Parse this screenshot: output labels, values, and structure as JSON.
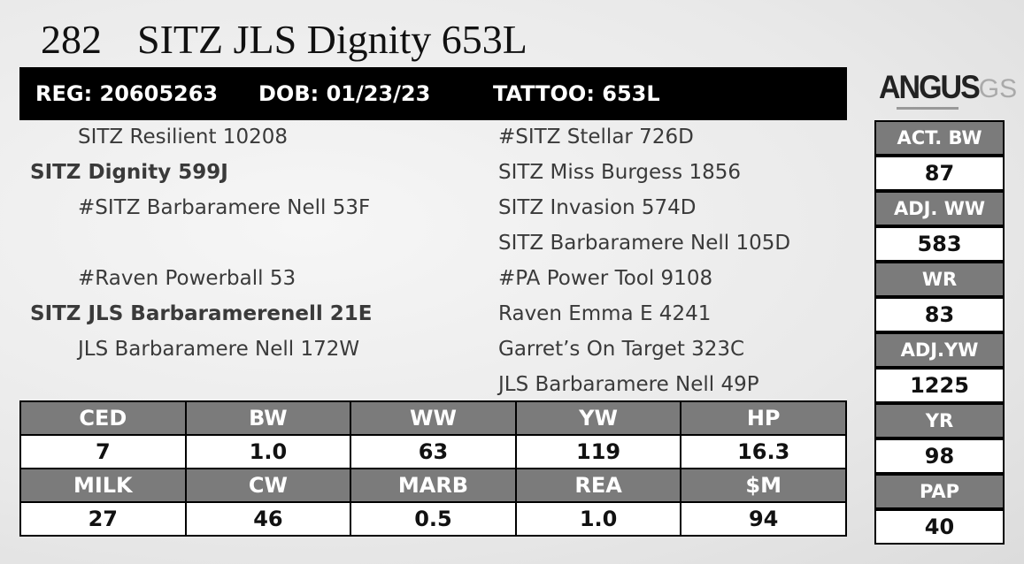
{
  "header": {
    "lot": "282",
    "name": "SITZ JLS Dignity 653L"
  },
  "id_bar": {
    "reg": "REG: 20605263",
    "dob": "DOB: 01/23/23",
    "tattoo": "TATTOO: 653L"
  },
  "logo": {
    "brand": "ANGUS",
    "suffix": "GS"
  },
  "pedigree": {
    "sire": {
      "sire": "SITZ Resilient 10208",
      "name": "SITZ Dignity 599J",
      "dam": "#SITZ Barbaramere Nell 53F"
    },
    "dam": {
      "sire": "#Raven Powerball 53",
      "name": "SITZ JLS Barbaramerenell 21E",
      "dam": "JLS Barbaramere Nell 172W"
    },
    "great_grandparents": [
      "#SITZ Stellar 726D",
      "SITZ Miss Burgess 1856",
      "SITZ Invasion 574D",
      "SITZ Barbaramere Nell 105D",
      "#PA Power Tool 9108",
      "Raven Emma E 4241",
      "Garret’s On Target 323C",
      "JLS Barbaramere Nell 49P"
    ]
  },
  "epd_table": {
    "rows": [
      {
        "headers": [
          "CED",
          "BW",
          "WW",
          "YW",
          "HP"
        ],
        "values": [
          "7",
          "1.0",
          "63",
          "119",
          "16.3"
        ]
      },
      {
        "headers": [
          "MILK",
          "CW",
          "MARB",
          "REA",
          "$M"
        ],
        "values": [
          "27",
          "46",
          "0.5",
          "1.0",
          "94"
        ]
      }
    ]
  },
  "performance": [
    {
      "label": "ACT. BW",
      "value": "87"
    },
    {
      "label": "ADJ. WW",
      "value": "583"
    },
    {
      "label": "WR",
      "value": "83"
    },
    {
      "label": "ADJ.YW",
      "value": "1225"
    },
    {
      "label": "YR",
      "value": "98"
    },
    {
      "label": "PAP",
      "value": "40"
    }
  ]
}
